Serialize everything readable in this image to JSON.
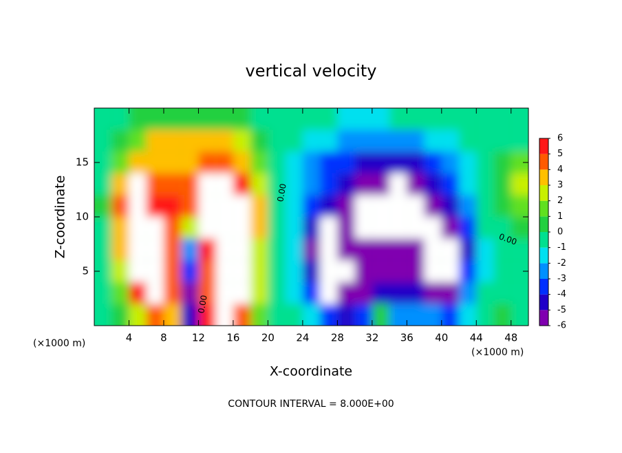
{
  "chart_data": {
    "type": "filled-contour",
    "title": "vertical velocity",
    "x_label": "X-coordinate",
    "y_label": "Z-coordinate",
    "x_unit_label": "(×1000 m)",
    "y_unit_label": "(×1000 m)",
    "footnote": "CONTOUR INTERVAL = 8.000E+00",
    "contour_labels": [
      "0.00",
      "0.00",
      "0.00"
    ],
    "xlim": [
      0,
      50
    ],
    "ylim": [
      0,
      20
    ],
    "xticks": [
      4,
      8,
      12,
      16,
      20,
      24,
      28,
      32,
      36,
      40,
      44,
      48
    ],
    "yticks": [
      5,
      10,
      15
    ],
    "x": [
      1,
      3,
      5,
      7,
      9,
      11,
      13,
      15,
      17,
      19,
      21,
      23,
      25,
      27,
      29,
      31,
      33,
      35,
      37,
      39,
      41,
      43,
      45,
      47,
      49
    ],
    "z": [
      1,
      3,
      5,
      7,
      9,
      11,
      13,
      15,
      17,
      19
    ],
    "values": [
      [
        0,
        1,
        3,
        5,
        4,
        -4,
        6,
        9,
        5,
        2,
        0,
        0,
        -1,
        -3,
        -4,
        -3,
        1,
        -2,
        -2,
        -2,
        -3,
        -1,
        0,
        1,
        0
      ],
      [
        0,
        2,
        6,
        8,
        5,
        -5,
        5,
        9,
        8,
        3,
        0,
        -1,
        -3,
        -7,
        -5,
        -5,
        -4,
        -4,
        -4,
        -5,
        -5,
        -2,
        0,
        0,
        0
      ],
      [
        0,
        3,
        9,
        9,
        5,
        -3,
        5,
        10,
        9,
        3,
        0,
        -1,
        -4,
        -7,
        -7,
        -5,
        -5,
        -5,
        -5,
        -7,
        -7,
        -3,
        -1,
        0,
        0
      ],
      [
        0,
        4,
        9,
        8,
        5,
        -2,
        6,
        10,
        9,
        3,
        0,
        -1,
        -5,
        -7,
        -6,
        -5,
        -6,
        -5,
        -5,
        -8,
        -7,
        -4,
        -1,
        0,
        0
      ],
      [
        0,
        4,
        9,
        7,
        5,
        3,
        7,
        10,
        9,
        4,
        0,
        -1,
        -4,
        -7,
        -6,
        -7,
        -7,
        -8,
        -7,
        -8,
        -6,
        -3,
        0,
        0,
        1
      ],
      [
        1,
        5,
        8,
        6,
        6,
        5,
        8,
        9,
        8,
        4,
        0,
        -1,
        -3,
        -4,
        -5,
        -7,
        -7,
        -7,
        -8,
        -6,
        -4,
        -2,
        0,
        1,
        2
      ],
      [
        0,
        4,
        7,
        5,
        5,
        5,
        8,
        8,
        6,
        3,
        0,
        -1,
        -2,
        -3,
        -4,
        -5,
        -5,
        -7,
        -6,
        -4,
        -3,
        -1,
        0,
        1,
        3
      ],
      [
        0,
        2,
        4,
        4,
        4,
        4,
        5,
        5,
        4,
        2,
        0,
        -1,
        -2,
        -3,
        -3,
        -4,
        -4,
        -4,
        -4,
        -3,
        -2,
        -1,
        0,
        1,
        2
      ],
      [
        0,
        1,
        2,
        4,
        4,
        4,
        4,
        4,
        3,
        1,
        0,
        0,
        -1,
        -1,
        -2,
        -2,
        -2,
        -2,
        -2,
        -1,
        -1,
        0,
        0,
        0,
        0
      ],
      [
        0,
        0,
        1,
        1,
        1,
        1,
        1,
        1,
        1,
        0,
        0,
        0,
        0,
        0,
        -1,
        -1,
        -1,
        0,
        0,
        0,
        0,
        0,
        0,
        0,
        0
      ]
    ],
    "levels": [
      -6,
      -5,
      -4,
      -3,
      -2,
      -1,
      0,
      1,
      2,
      3,
      4,
      5,
      6
    ],
    "colors": [
      "#8000b0",
      "#2000c8",
      "#0030ff",
      "#0090ff",
      "#00e0f0",
      "#00e090",
      "#22d040",
      "#60e020",
      "#c8f000",
      "#ffc000",
      "#ff5a00",
      "#ff1818"
    ],
    "out_of_range_color": "#ffffff"
  }
}
